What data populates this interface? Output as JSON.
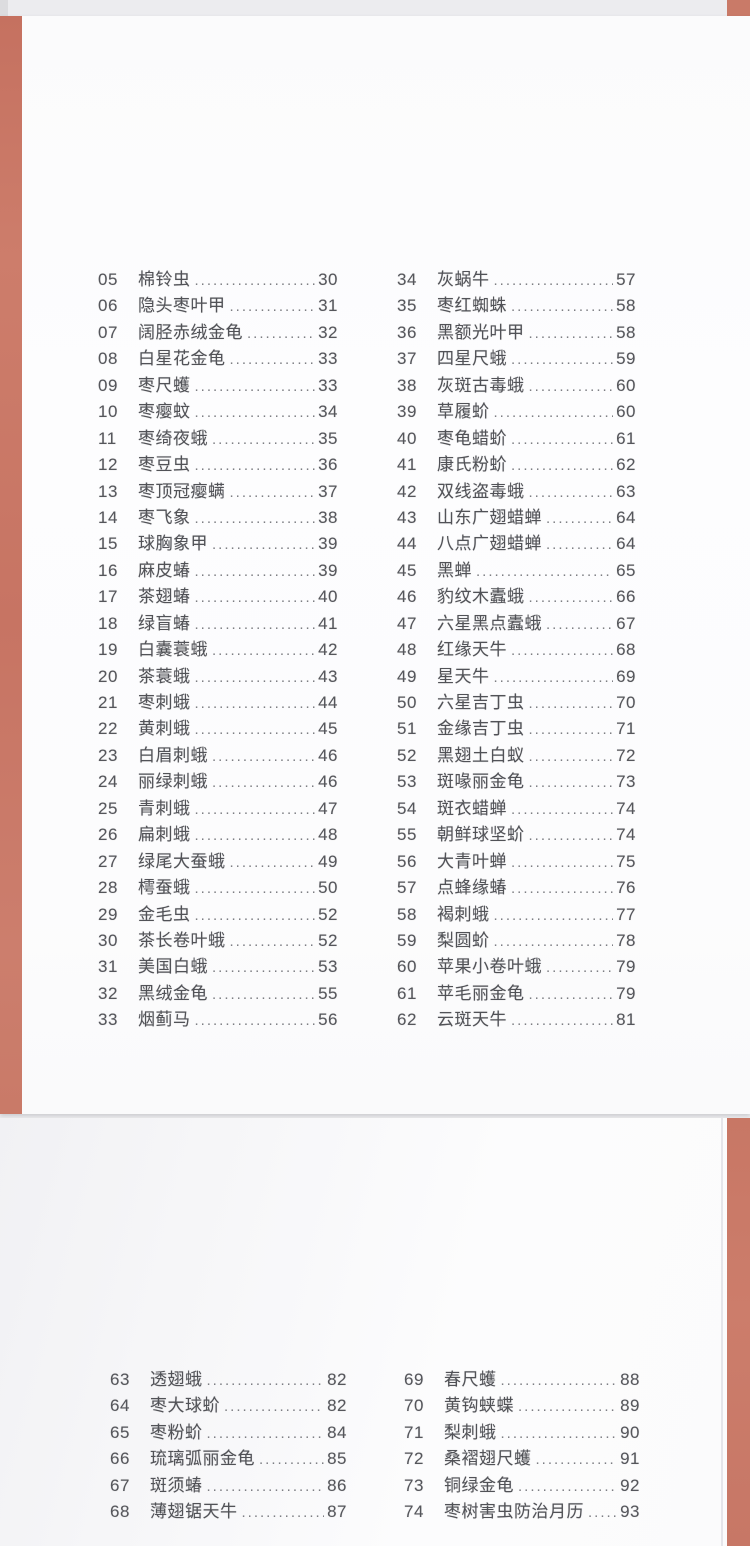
{
  "colors": {
    "accent": "#c97a68",
    "text": "#515257",
    "dots": "#7d7e83",
    "backdrop": "#ededef"
  },
  "toc": {
    "pages": [
      {
        "name": "page-1",
        "columns": [
          {
            "entries": [
              {
                "num": "05",
                "title": "棉铃虫",
                "page": "30"
              },
              {
                "num": "06",
                "title": "隐头枣叶甲",
                "page": "31"
              },
              {
                "num": "07",
                "title": "阔胫赤绒金龟",
                "page": "32"
              },
              {
                "num": "08",
                "title": "白星花金龟",
                "page": "33"
              },
              {
                "num": "09",
                "title": "枣尺蠖",
                "page": "33"
              },
              {
                "num": "10",
                "title": "枣瘿蚊",
                "page": "34"
              },
              {
                "num": "11",
                "title": "枣绮夜蛾",
                "page": "35"
              },
              {
                "num": "12",
                "title": "枣豆虫",
                "page": "36"
              },
              {
                "num": "13",
                "title": "枣顶冠瘿螨",
                "page": "37"
              },
              {
                "num": "14",
                "title": "枣飞象",
                "page": "38"
              },
              {
                "num": "15",
                "title": "球胸象甲",
                "page": "39"
              },
              {
                "num": "16",
                "title": "麻皮蝽",
                "page": "39"
              },
              {
                "num": "17",
                "title": "茶翅蝽",
                "page": "40"
              },
              {
                "num": "18",
                "title": "绿盲蝽",
                "page": "41"
              },
              {
                "num": "19",
                "title": "白囊蓑蛾",
                "page": "42"
              },
              {
                "num": "20",
                "title": "茶蓑蛾",
                "page": "43"
              },
              {
                "num": "21",
                "title": "枣刺蛾",
                "page": "44"
              },
              {
                "num": "22",
                "title": "黄刺蛾",
                "page": "45"
              },
              {
                "num": "23",
                "title": "白眉刺蛾",
                "page": "46"
              },
              {
                "num": "24",
                "title": "丽绿刺蛾",
                "page": "46"
              },
              {
                "num": "25",
                "title": "青刺蛾",
                "page": "47"
              },
              {
                "num": "26",
                "title": "扁刺蛾",
                "page": "48"
              },
              {
                "num": "27",
                "title": "绿尾大蚕蛾",
                "page": "49"
              },
              {
                "num": "28",
                "title": "樗蚕蛾",
                "page": "50"
              },
              {
                "num": "29",
                "title": "金毛虫",
                "page": "52"
              },
              {
                "num": "30",
                "title": "茶长卷叶蛾",
                "page": "52"
              },
              {
                "num": "31",
                "title": "美国白蛾",
                "page": "53"
              },
              {
                "num": "32",
                "title": "黑绒金龟",
                "page": "55"
              },
              {
                "num": "33",
                "title": "烟蓟马",
                "page": "56"
              }
            ]
          },
          {
            "entries": [
              {
                "num": "34",
                "title": "灰蜗牛",
                "page": "57"
              },
              {
                "num": "35",
                "title": "枣红蜘蛛",
                "page": "58"
              },
              {
                "num": "36",
                "title": "黑额光叶甲",
                "page": "58"
              },
              {
                "num": "37",
                "title": "四星尺蛾",
                "page": "59"
              },
              {
                "num": "38",
                "title": "灰斑古毒蛾",
                "page": "60"
              },
              {
                "num": "39",
                "title": "草履蚧",
                "page": "60"
              },
              {
                "num": "40",
                "title": "枣龟蜡蚧",
                "page": "61"
              },
              {
                "num": "41",
                "title": "康氏粉蚧",
                "page": "62"
              },
              {
                "num": "42",
                "title": "双线盗毒蛾",
                "page": "63"
              },
              {
                "num": "43",
                "title": "山东广翅蜡蝉",
                "page": "64"
              },
              {
                "num": "44",
                "title": "八点广翅蜡蝉",
                "page": "64"
              },
              {
                "num": "45",
                "title": "黑蝉",
                "page": "65"
              },
              {
                "num": "46",
                "title": "豹纹木蠹蛾",
                "page": "66"
              },
              {
                "num": "47",
                "title": "六星黑点蠹蛾",
                "page": "67"
              },
              {
                "num": "48",
                "title": "红缘天牛",
                "page": "68"
              },
              {
                "num": "49",
                "title": "星天牛",
                "page": "69"
              },
              {
                "num": "50",
                "title": "六星吉丁虫",
                "page": "70"
              },
              {
                "num": "51",
                "title": "金缘吉丁虫",
                "page": "71"
              },
              {
                "num": "52",
                "title": "黑翅土白蚁",
                "page": "72"
              },
              {
                "num": "53",
                "title": "斑喙丽金龟",
                "page": "73"
              },
              {
                "num": "54",
                "title": "斑衣蜡蝉",
                "page": "74"
              },
              {
                "num": "55",
                "title": "朝鲜球坚蚧",
                "page": "74"
              },
              {
                "num": "56",
                "title": "大青叶蝉",
                "page": "75"
              },
              {
                "num": "57",
                "title": "点蜂缘蝽",
                "page": "76"
              },
              {
                "num": "58",
                "title": "褐刺蛾",
                "page": "77"
              },
              {
                "num": "59",
                "title": "梨圆蚧",
                "page": "78"
              },
              {
                "num": "60",
                "title": "苹果小卷叶蛾",
                "page": "79"
              },
              {
                "num": "61",
                "title": "苹毛丽金龟",
                "page": "79"
              },
              {
                "num": "62",
                "title": "云斑天牛",
                "page": "81"
              }
            ]
          }
        ]
      },
      {
        "name": "page-2",
        "columns": [
          {
            "entries": [
              {
                "num": "63",
                "title": "透翅蛾",
                "page": "82"
              },
              {
                "num": "64",
                "title": "枣大球蚧",
                "page": "82"
              },
              {
                "num": "65",
                "title": "枣粉蚧",
                "page": "84"
              },
              {
                "num": "66",
                "title": "琉璃弧丽金龟",
                "page": "85"
              },
              {
                "num": "67",
                "title": "斑须蝽",
                "page": "86"
              },
              {
                "num": "68",
                "title": "薄翅锯天牛",
                "page": "87"
              }
            ]
          },
          {
            "entries": [
              {
                "num": "69",
                "title": "春尺蠖",
                "page": "88"
              },
              {
                "num": "70",
                "title": "黄钩蛱蝶",
                "page": "89"
              },
              {
                "num": "71",
                "title": "梨刺蛾",
                "page": "90"
              },
              {
                "num": "72",
                "title": "桑褶翅尺蠖",
                "page": "91"
              },
              {
                "num": "73",
                "title": "铜绿金龟",
                "page": "92"
              },
              {
                "num": "74",
                "title": "枣树害虫防治月历",
                "page": "93"
              }
            ]
          }
        ]
      }
    ]
  }
}
